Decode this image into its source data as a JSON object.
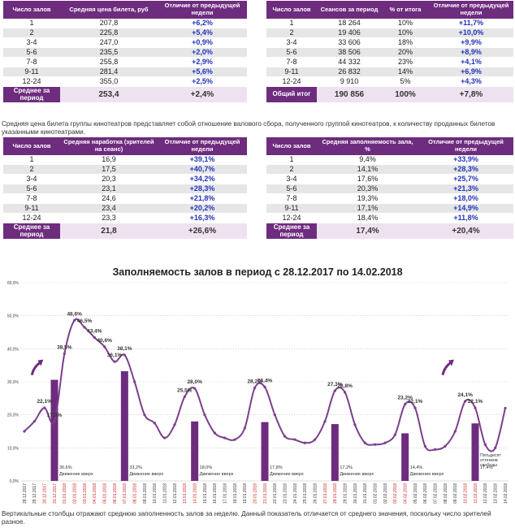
{
  "tables": {
    "t1": {
      "headers": [
        "Число залов",
        "Средняя цена билета, руб",
        "Отличие от предыдущей недели"
      ],
      "rows": [
        [
          "1",
          "207,8",
          "+6,2%"
        ],
        [
          "2",
          "225,8",
          "+5,4%"
        ],
        [
          "3-4",
          "247,0",
          "+0,9%"
        ],
        [
          "5-6",
          "235,5",
          "+2,0%"
        ],
        [
          "7-8",
          "255,8",
          "+2,9%"
        ],
        [
          "9-11",
          "281,4",
          "+5,6%"
        ],
        [
          "12-24",
          "355,0",
          "+2,5%"
        ]
      ],
      "total": [
        "Среднее за период",
        "253,4",
        "+2,4%"
      ]
    },
    "t2": {
      "headers": [
        "Число залов",
        "Сеансов за период",
        "% от итога",
        "Отличие от предыдущей недели"
      ],
      "rows": [
        [
          "1",
          "18 264",
          "10%",
          "+11,7%"
        ],
        [
          "2",
          "19 406",
          "10%",
          "+10,0%"
        ],
        [
          "3-4",
          "33 606",
          "18%",
          "+9,9%"
        ],
        [
          "5-6",
          "38 506",
          "20%",
          "+8,9%"
        ],
        [
          "7-8",
          "44 332",
          "23%",
          "+4,1%"
        ],
        [
          "9-11",
          "26 832",
          "14%",
          "+6,9%"
        ],
        [
          "12-24",
          "9 910",
          "5%",
          "+4,3%"
        ]
      ],
      "total": [
        "Общий итог",
        "190 856",
        "100%",
        "+7,8%"
      ]
    },
    "t3": {
      "headers": [
        "Число залов",
        "Средняя наработка (зрителей на сеанс)",
        "Отличие от предыдущей недели"
      ],
      "rows": [
        [
          "1",
          "16,9",
          "+39,1%"
        ],
        [
          "2",
          "17,5",
          "+40,7%"
        ],
        [
          "3-4",
          "20,3",
          "+34,2%"
        ],
        [
          "5-6",
          "23,1",
          "+28,3%"
        ],
        [
          "7-8",
          "24,6",
          "+21,8%"
        ],
        [
          "9-11",
          "23,4",
          "+20,2%"
        ],
        [
          "12-24",
          "23,3",
          "+16,3%"
        ]
      ],
      "total": [
        "Среднее за период",
        "21,8",
        "+26,6%"
      ]
    },
    "t4": {
      "headers": [
        "Число залов",
        "Средняя заполняемость зала, %",
        "Отличие от предыдущей недели"
      ],
      "rows": [
        [
          "1",
          "9,4%",
          "+33,9%"
        ],
        [
          "2",
          "14,1%",
          "+28,3%"
        ],
        [
          "3-4",
          "17,6%",
          "+25,7%"
        ],
        [
          "5-6",
          "20,3%",
          "+21,3%"
        ],
        [
          "7-8",
          "19,3%",
          "+18,0%"
        ],
        [
          "9-11",
          "17,1%",
          "+14,9%"
        ],
        [
          "12-24",
          "18,4%",
          "+11,8%"
        ]
      ],
      "total": [
        "Среднее за период",
        "17,4%",
        "+20,4%"
      ]
    }
  },
  "notes": {
    "price_note": "Средняя цена билета группы кинотеатров представляет собой отношение валового сбора, полученного группой кинотеатров, к количеству проданных билетов указанными кинотеатрами.",
    "bottom_note": "Вертикальные столбцы отражают среднюю заполненность залов за неделю. Данный показатель отличается от среднего значения, поскольку число зрителей разное."
  },
  "chart_data": {
    "type": "line",
    "title": "Заполняемость залов в период с 28.12.2017 по 14.02.2018",
    "ylim": [
      0,
      60
    ],
    "yticks": [
      "0,0%",
      "10,0%",
      "20,0%",
      "30,0%",
      "40,0%",
      "50,0%",
      "60,0%"
    ],
    "x": [
      "28.12.2017",
      "29.12.2017",
      "30.12.2017",
      "31.12.2017",
      "01.01.2018",
      "02.01.2018",
      "03.01.2018",
      "04.01.2018",
      "05.01.2018",
      "06.01.2018",
      "07.01.2018",
      "08.01.2018",
      "09.01.2018",
      "10.01.2018",
      "11.01.2018",
      "12.01.2018",
      "13.01.2018",
      "14.01.2018",
      "15.01.2018",
      "16.01.2018",
      "17.01.2018",
      "18.01.2018",
      "19.01.2018",
      "20.01.2018",
      "21.01.2018",
      "22.01.2018",
      "23.01.2018",
      "24.01.2018",
      "25.01.2018",
      "26.01.2018",
      "27.01.2018",
      "28.01.2018",
      "29.01.2018",
      "30.01.2018",
      "31.01.2018",
      "01.02.2018",
      "02.02.2018",
      "03.02.2018",
      "04.02.2018",
      "05.02.2018",
      "06.02.2018",
      "07.02.2018",
      "08.02.2018",
      "09.02.2018",
      "10.02.2018",
      "11.02.2018",
      "12.02.2018",
      "13.02.2018",
      "14.02.2018"
    ],
    "red_dates": [
      "30.12.2017",
      "31.12.2017",
      "01.01.2018",
      "02.01.2018",
      "03.01.2018",
      "04.01.2018",
      "05.01.2018",
      "06.01.2018",
      "07.01.2018",
      "08.01.2018",
      "13.01.2018",
      "14.01.2018",
      "20.01.2018",
      "21.01.2018",
      "27.01.2018",
      "28.01.2018",
      "03.02.2018",
      "04.02.2018",
      "10.02.2018",
      "11.02.2018"
    ],
    "values": [
      15.0,
      18.0,
      22.1,
      17.9,
      38.5,
      48.6,
      46.5,
      43.4,
      40.6,
      36.1,
      38.1,
      30.0,
      20.0,
      17.5,
      13.0,
      17.0,
      25.5,
      28.0,
      20.0,
      14.5,
      13.0,
      12.5,
      16.0,
      28.2,
      28.4,
      20.0,
      13.5,
      12.5,
      11.5,
      12.5,
      18.0,
      27.3,
      26.8,
      17.0,
      11.5,
      11.0,
      11.5,
      14.0,
      23.2,
      22.1,
      10.5,
      9.5,
      10.5,
      15.0,
      24.1,
      22.1,
      11.0,
      10.0,
      22.0
    ],
    "point_labels": [
      {
        "i": 2,
        "text": "22,1%"
      },
      {
        "i": 3,
        "text": "17,9%"
      },
      {
        "i": 4,
        "text": "38,5%"
      },
      {
        "i": 5,
        "text": "48,6%"
      },
      {
        "i": 6,
        "text": "46,5%"
      },
      {
        "i": 7,
        "text": "43,4%"
      },
      {
        "i": 8,
        "text": "40,6%"
      },
      {
        "i": 9,
        "text": "36,1%"
      },
      {
        "i": 10,
        "text": "38,1%"
      },
      {
        "i": 16,
        "text": "25,5%"
      },
      {
        "i": 17,
        "text": "28,0%"
      },
      {
        "i": 23,
        "text": "28,2%"
      },
      {
        "i": 24,
        "text": "28,4%"
      },
      {
        "i": 31,
        "text": "27,3%"
      },
      {
        "i": 32,
        "text": "26,8%"
      },
      {
        "i": 38,
        "text": "23,2%"
      },
      {
        "i": 39,
        "text": "22,1%"
      },
      {
        "i": 44,
        "text": "24,1%"
      },
      {
        "i": 45,
        "text": "22,1%"
      }
    ],
    "bars": [
      {
        "i": 3,
        "value": 30.6,
        "label": "30,6%",
        "caption": "Движение вверх"
      },
      {
        "i": 10,
        "value": 33.2,
        "label": "33,2%",
        "caption": "Движение вверх"
      },
      {
        "i": 17,
        "value": 18.0,
        "label": "18,0%",
        "caption": "Движение вверх"
      },
      {
        "i": 24,
        "value": 17.8,
        "label": "17,8%",
        "caption": "Движение вверх"
      },
      {
        "i": 31,
        "value": 17.2,
        "label": "17,2%",
        "caption": "Движение вверх"
      },
      {
        "i": 38,
        "value": 14.4,
        "label": "14,4%",
        "caption": "Движение вверх"
      },
      {
        "i": 45,
        "value": 17.4,
        "label": "17,4%",
        "caption": "Пятьдесят оттенков свободы"
      }
    ],
    "arrows": [
      1,
      42
    ],
    "colors": {
      "line": "#7b3f8c",
      "bar": "#6e2c7e",
      "red_date": "#cc2222",
      "grid": "#bbbbbb"
    }
  }
}
